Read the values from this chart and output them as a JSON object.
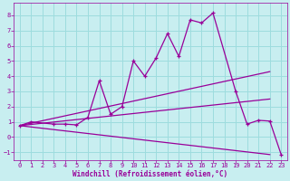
{
  "xlabel": "Windchill (Refroidissement éolien,°C)",
  "background_color": "#c8eef0",
  "grid_color": "#9ddcde",
  "line_color": "#990099",
  "xlim": [
    -0.5,
    23.5
  ],
  "ylim": [
    -1.5,
    8.8
  ],
  "xticks": [
    0,
    1,
    2,
    3,
    4,
    5,
    6,
    7,
    8,
    9,
    10,
    11,
    12,
    13,
    14,
    15,
    16,
    17,
    18,
    19,
    20,
    21,
    22,
    23
  ],
  "yticks": [
    -1,
    0,
    1,
    2,
    3,
    4,
    5,
    6,
    7,
    8
  ],
  "series_main": {
    "x": [
      0,
      1,
      3,
      4,
      5,
      6,
      7,
      8,
      9,
      10,
      11,
      12,
      13,
      14,
      15,
      16,
      17,
      19,
      20,
      21,
      22,
      23
    ],
    "y": [
      0.75,
      1.0,
      0.85,
      0.85,
      0.8,
      1.3,
      3.7,
      1.5,
      2.0,
      5.0,
      4.0,
      5.2,
      6.8,
      5.3,
      7.7,
      7.5,
      8.15,
      3.0,
      0.85,
      1.1,
      1.05,
      -1.15
    ]
  },
  "lines": [
    {
      "x": [
        0,
        22
      ],
      "y": [
        0.75,
        4.3
      ]
    },
    {
      "x": [
        0,
        22
      ],
      "y": [
        0.75,
        2.5
      ]
    },
    {
      "x": [
        0,
        22
      ],
      "y": [
        0.75,
        -1.15
      ]
    }
  ]
}
